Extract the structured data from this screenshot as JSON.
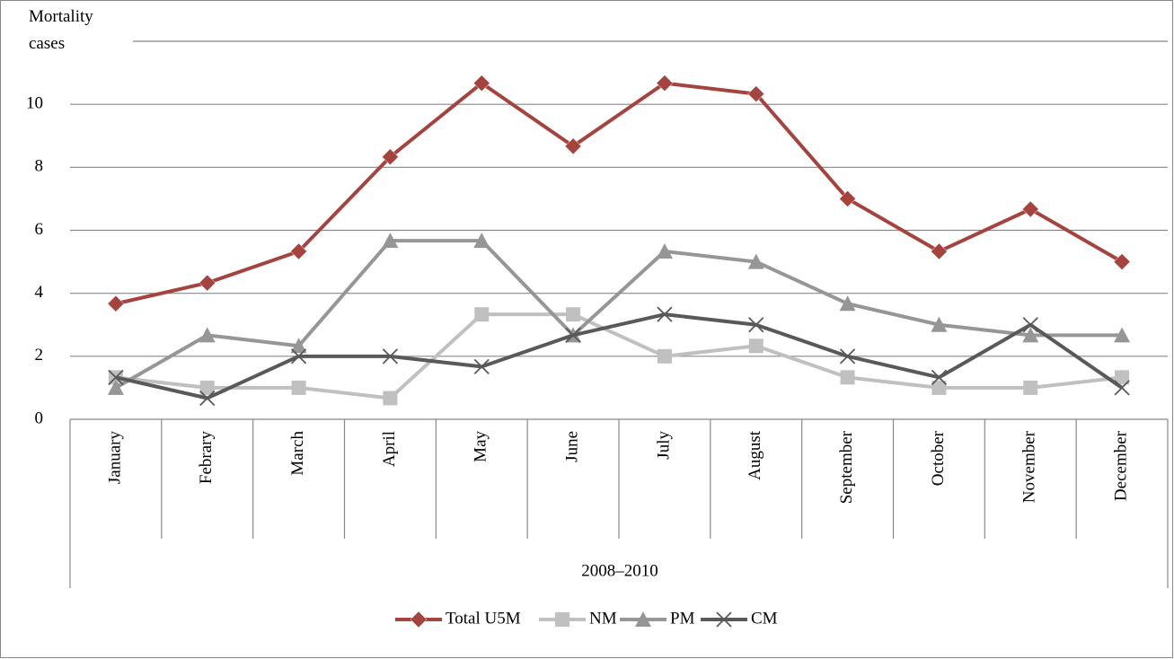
{
  "chart_data": {
    "type": "line",
    "y_label": "Mortality cases",
    "x_label": "2008–2010",
    "categories": [
      "January",
      "Febrary",
      "March",
      "April",
      "May",
      "June",
      "July",
      "August",
      "September",
      "October",
      "November",
      "December"
    ],
    "series": [
      {
        "name": "Total U5M",
        "color": "#a5443f",
        "marker": "diamond",
        "values": [
          3.67,
          4.33,
          5.33,
          8.33,
          10.67,
          8.67,
          10.67,
          10.33,
          7,
          5.33,
          6.67,
          5
        ]
      },
      {
        "name": "NM",
        "color": "#c0c0c0",
        "marker": "square",
        "values": [
          1.33,
          1,
          1,
          0.67,
          3.33,
          3.33,
          2,
          2.33,
          1.33,
          1,
          1,
          1.33
        ]
      },
      {
        "name": "PM",
        "color": "#969696",
        "marker": "triangle",
        "values": [
          1,
          2.67,
          2.33,
          5.67,
          5.67,
          2.67,
          5.33,
          5,
          3.67,
          3,
          2.67,
          2.67
        ]
      },
      {
        "name": "CM",
        "color": "#595959",
        "marker": "x",
        "values": [
          1.33,
          0.67,
          2,
          2,
          1.67,
          2.67,
          3.33,
          3,
          2,
          1.33,
          3,
          1
        ]
      }
    ],
    "ylim": [
      0,
      12
    ],
    "yticks": [
      0,
      2,
      4,
      6,
      8,
      10
    ],
    "grid": true,
    "legend": "bottom"
  }
}
